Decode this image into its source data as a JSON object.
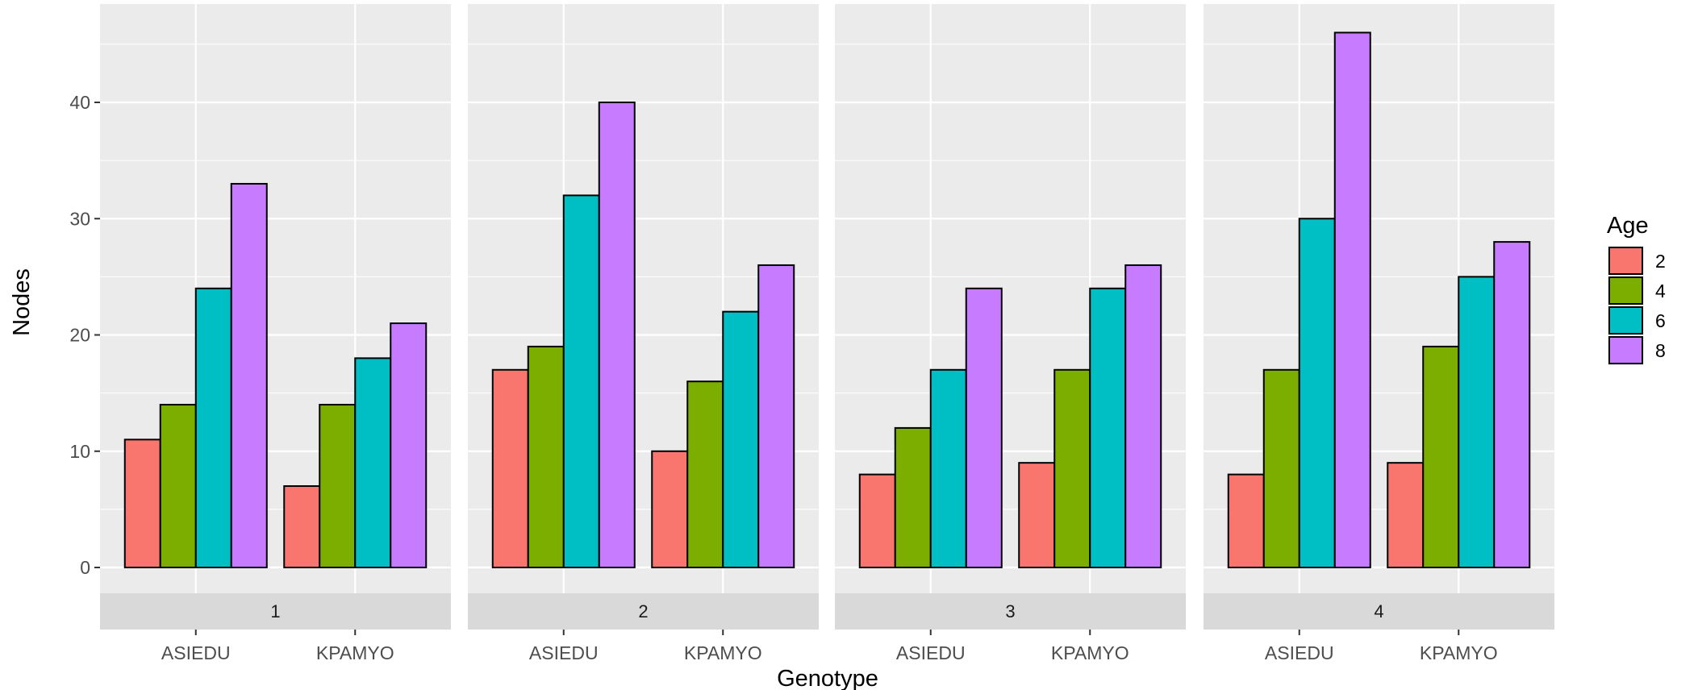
{
  "chart_data": {
    "type": "bar",
    "xlabel": "Genotype",
    "ylabel": "Nodes",
    "ylim": [
      0,
      48
    ],
    "y_ticks": [
      0,
      10,
      20,
      30,
      40
    ],
    "categories": [
      "ASIEDU",
      "KPAMYO"
    ],
    "legend": {
      "title": "Age",
      "placement": "right",
      "entries": [
        {
          "label": "2",
          "color": "#F8766D"
        },
        {
          "label": "4",
          "color": "#7CAE00"
        },
        {
          "label": "6",
          "color": "#00BFC4"
        },
        {
          "label": "8",
          "color": "#C77CFF"
        }
      ]
    },
    "grid": true,
    "facets": [
      {
        "label": "1",
        "series": [
          {
            "name": "2",
            "values": [
              11,
              7
            ]
          },
          {
            "name": "4",
            "values": [
              14,
              14
            ]
          },
          {
            "name": "6",
            "values": [
              24,
              18
            ]
          },
          {
            "name": "8",
            "values": [
              33,
              21
            ]
          }
        ]
      },
      {
        "label": "2",
        "series": [
          {
            "name": "2",
            "values": [
              17,
              10
            ]
          },
          {
            "name": "4",
            "values": [
              19,
              16
            ]
          },
          {
            "name": "6",
            "values": [
              32,
              22
            ]
          },
          {
            "name": "8",
            "values": [
              40,
              26
            ]
          }
        ]
      },
      {
        "label": "3",
        "series": [
          {
            "name": "2",
            "values": [
              8,
              9
            ]
          },
          {
            "name": "4",
            "values": [
              12,
              17
            ]
          },
          {
            "name": "6",
            "values": [
              17,
              24
            ]
          },
          {
            "name": "8",
            "values": [
              24,
              26
            ]
          }
        ]
      },
      {
        "label": "4",
        "series": [
          {
            "name": "2",
            "values": [
              8,
              9
            ]
          },
          {
            "name": "4",
            "values": [
              17,
              19
            ]
          },
          {
            "name": "6",
            "values": [
              30,
              25
            ]
          },
          {
            "name": "8",
            "values": [
              46,
              28
            ]
          }
        ]
      }
    ]
  }
}
